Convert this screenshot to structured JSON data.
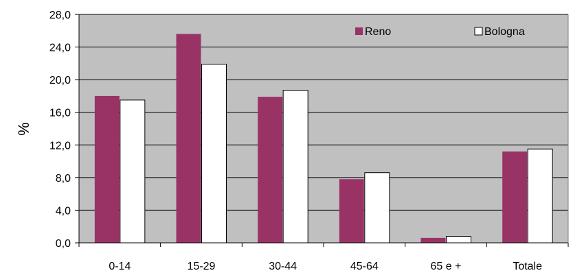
{
  "chart_data": {
    "type": "bar",
    "categories": [
      "0-14",
      "15-29",
      "30-44",
      "45-64",
      "65 e +",
      "Totale"
    ],
    "series": [
      {
        "name": "Reno",
        "values": [
          18.0,
          25.6,
          17.9,
          7.8,
          0.6,
          11.2
        ],
        "color": "#993366"
      },
      {
        "name": "Bologna",
        "values": [
          17.5,
          21.9,
          18.7,
          8.6,
          0.8,
          11.5
        ],
        "color": "#ffffff"
      }
    ],
    "title": "",
    "xlabel": "",
    "ylabel": "%",
    "ylim": [
      0,
      28
    ],
    "yticks": [
      "0,0",
      "4,0",
      "8,0",
      "12,0",
      "16,0",
      "20,0",
      "24,0",
      "28,0"
    ],
    "grid": true,
    "legend_position": "top-right",
    "plot_background": "#c0c0c0"
  }
}
